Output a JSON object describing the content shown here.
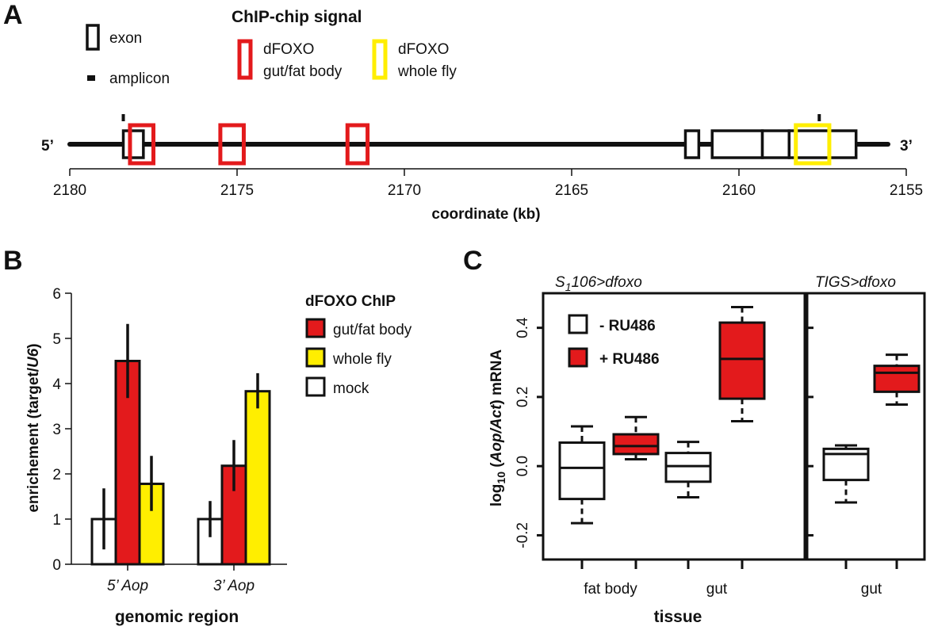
{
  "panel_a": {
    "letter": "A",
    "legend": {
      "exon": "exon",
      "amplicon": "amplicon",
      "signal_title": "ChIP-chip signal",
      "gutfat_line1": "dFOXO",
      "gutfat_line2": "gut/fat body",
      "whole_line1": "dFOXO",
      "whole_line2": "whole fly"
    },
    "end5": "5’",
    "end3": "3’",
    "xlabel": "coordinate (kb)",
    "ticks": [
      "2180",
      "2175",
      "2170",
      "2165",
      "2160",
      "2155"
    ]
  },
  "panel_b": {
    "letter": "B",
    "ylabel_pre": "enrichement (target/",
    "ylabel_it": "U6",
    "ylabel_post": ")",
    "xlabel": "genomic region",
    "legend_title": "dFOXO ChIP",
    "y_ticks": [
      "0",
      "1",
      "2",
      "3",
      "4",
      "5",
      "6"
    ]
  },
  "panel_c": {
    "letter": "C",
    "facet1": "S",
    "facet1_sub": "1",
    "facet1_rest": "106>dfoxo",
    "facet2": "TIGS>dfoxo",
    "ylabel_pre": "log",
    "ylabel_sub": "10",
    "ylabel_open": " (",
    "ylabel_it": "Aop/Act",
    "ylabel_post": ") mRNA",
    "xlabel": "tissue",
    "y_ticks": [
      "-0.2",
      "0.0",
      "0.2",
      "0.4"
    ],
    "cat1": "fat body",
    "cat2": "gut",
    "cat3": "gut",
    "legend_minus": "- RU486",
    "legend_plus": "+ RU486"
  },
  "colors": {
    "red": "#e31a1c",
    "yellow": "#ffee00",
    "white": "#ffffff",
    "black": "#111111"
  },
  "chart_data": [
    {
      "panel": "A",
      "type": "diagram",
      "title": "ChIP-chip signal",
      "xlabel": "coordinate (kb)",
      "xlim": [
        2180,
        2155
      ],
      "exons": [
        [
          2178.4,
          2177.8
        ],
        [
          2161.6,
          2161.2
        ],
        [
          2160.8,
          2159.3
        ],
        [
          2159.3,
          2158.5
        ],
        [
          2158.5,
          2156.5
        ]
      ],
      "amplicons": [
        2178.4,
        2157.6
      ],
      "chip_signal": [
        {
          "name": "dFOXO gut/fat body",
          "color": "#e31a1c",
          "regions": [
            [
              2178.2,
              2177.5
            ],
            [
              2175.5,
              2174.8
            ],
            [
              2171.7,
              2171.1
            ]
          ]
        },
        {
          "name": "dFOXO whole fly",
          "color": "#ffee00",
          "regions": [
            [
              2158.3,
              2157.3
            ]
          ]
        }
      ]
    },
    {
      "panel": "B",
      "type": "bar",
      "categories": [
        "5’ Aop",
        "3’ Aop"
      ],
      "series": [
        {
          "name": "mock",
          "color": "#ffffff",
          "values": [
            1.0,
            1.0
          ],
          "error": [
            [
              0.33,
              1.68
            ],
            [
              0.6,
              1.4
            ]
          ]
        },
        {
          "name": "gut/fat body",
          "color": "#e31a1c",
          "values": [
            4.5,
            2.18
          ],
          "error": [
            [
              3.68,
              5.32
            ],
            [
              1.62,
              2.75
            ]
          ]
        },
        {
          "name": "whole fly",
          "color": "#ffee00",
          "values": [
            1.78,
            3.83
          ],
          "error": [
            [
              1.18,
              2.4
            ],
            [
              3.45,
              4.23
            ]
          ]
        }
      ],
      "xlabel": "genomic region",
      "ylabel": "enrichement (target/U6)",
      "ylim": [
        0,
        6
      ],
      "legend_title": "dFOXO ChIP",
      "legend": "right"
    },
    {
      "panel": "C",
      "type": "box",
      "ylabel": "log10 (Aop/Act) mRNA",
      "xlabel": "tissue",
      "ylim": [
        -0.27,
        0.5
      ],
      "series": [
        {
          "name": "- RU486",
          "color": "#ffffff"
        },
        {
          "name": "+ RU486",
          "color": "#e31a1c"
        }
      ],
      "facets": [
        {
          "name": "S1106>dfoxo",
          "categories": [
            "fat body",
            "gut"
          ],
          "boxes": [
            {
              "category": "fat body",
              "series": "- RU486",
              "whisker_low": -0.165,
              "q1": -0.095,
              "median": -0.005,
              "q3": 0.068,
              "whisker_high": 0.115
            },
            {
              "category": "fat body",
              "series": "+ RU486",
              "whisker_low": 0.02,
              "q1": 0.035,
              "median": 0.058,
              "q3": 0.092,
              "whisker_high": 0.142
            },
            {
              "category": "gut",
              "series": "- RU486",
              "whisker_low": -0.09,
              "q1": -0.045,
              "median": 0.0,
              "q3": 0.038,
              "whisker_high": 0.07
            },
            {
              "category": "gut",
              "series": "+ RU486",
              "whisker_low": 0.13,
              "q1": 0.195,
              "median": 0.31,
              "q3": 0.415,
              "whisker_high": 0.46
            }
          ]
        },
        {
          "name": "TIGS>dfoxo",
          "categories": [
            "gut"
          ],
          "boxes": [
            {
              "category": "gut",
              "series": "- RU486",
              "whisker_low": -0.105,
              "q1": -0.04,
              "median": 0.035,
              "q3": 0.05,
              "whisker_high": 0.06
            },
            {
              "category": "gut",
              "series": "+ RU486",
              "whisker_low": 0.178,
              "q1": 0.215,
              "median": 0.27,
              "q3": 0.29,
              "whisker_high": 0.322
            }
          ]
        }
      ]
    }
  ]
}
